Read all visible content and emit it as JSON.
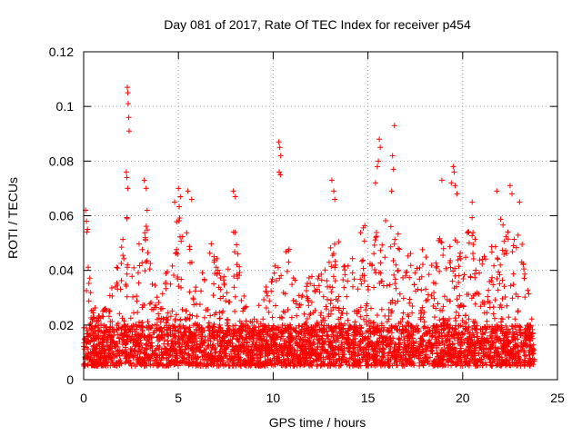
{
  "chart_data": {
    "type": "scatter",
    "title": "Day 081 of 2017, Rate Of TEC Index for receiver p454",
    "xlabel": "GPS time / hours",
    "ylabel": "ROTI / TECUs",
    "xlim": [
      0,
      25
    ],
    "ylim": [
      0,
      0.12
    ],
    "xticks": [
      0,
      5,
      10,
      15,
      20,
      25
    ],
    "yticks": [
      0,
      0.02,
      0.04,
      0.06,
      0.08,
      0.1,
      0.12
    ],
    "xtick_labels": [
      "0",
      "5",
      "10",
      "15",
      "20",
      "25"
    ],
    "ytick_labels": [
      "0",
      "0.02",
      "0.04",
      "0.06",
      "0.08",
      "0.1",
      "0.12"
    ],
    "grid": true,
    "marker": "+",
    "color": "#ff0000",
    "time_span_hours": [
      0,
      23.8
    ],
    "baseline_range": [
      0.005,
      0.02
    ],
    "envelope": [
      {
        "t": 0.0,
        "v": 0.02
      },
      {
        "t": 0.15,
        "v": 0.062
      },
      {
        "t": 0.4,
        "v": 0.03
      },
      {
        "t": 1.0,
        "v": 0.025
      },
      {
        "t": 1.5,
        "v": 0.035
      },
      {
        "t": 2.0,
        "v": 0.05
      },
      {
        "t": 2.3,
        "v": 0.06
      },
      {
        "t": 2.6,
        "v": 0.04
      },
      {
        "t": 3.0,
        "v": 0.055
      },
      {
        "t": 3.5,
        "v": 0.06
      },
      {
        "t": 4.0,
        "v": 0.03
      },
      {
        "t": 4.5,
        "v": 0.045
      },
      {
        "t": 4.9,
        "v": 0.065
      },
      {
        "t": 5.5,
        "v": 0.058
      },
      {
        "t": 6.0,
        "v": 0.03
      },
      {
        "t": 6.5,
        "v": 0.055
      },
      {
        "t": 7.0,
        "v": 0.05
      },
      {
        "t": 7.5,
        "v": 0.035
      },
      {
        "t": 7.8,
        "v": 0.065
      },
      {
        "t": 8.5,
        "v": 0.03
      },
      {
        "t": 9.0,
        "v": 0.025
      },
      {
        "t": 9.5,
        "v": 0.03
      },
      {
        "t": 10.0,
        "v": 0.045
      },
      {
        "t": 10.3,
        "v": 0.055
      },
      {
        "t": 10.8,
        "v": 0.05
      },
      {
        "t": 11.5,
        "v": 0.035
      },
      {
        "t": 12.0,
        "v": 0.04
      },
      {
        "t": 12.8,
        "v": 0.045
      },
      {
        "t": 13.3,
        "v": 0.055
      },
      {
        "t": 14.0,
        "v": 0.05
      },
      {
        "t": 14.5,
        "v": 0.055
      },
      {
        "t": 15.0,
        "v": 0.06
      },
      {
        "t": 15.5,
        "v": 0.055
      },
      {
        "t": 16.0,
        "v": 0.062
      },
      {
        "t": 16.5,
        "v": 0.055
      },
      {
        "t": 17.0,
        "v": 0.05
      },
      {
        "t": 17.5,
        "v": 0.045
      },
      {
        "t": 18.0,
        "v": 0.05
      },
      {
        "t": 18.5,
        "v": 0.055
      },
      {
        "t": 19.0,
        "v": 0.05
      },
      {
        "t": 19.5,
        "v": 0.055
      },
      {
        "t": 20.0,
        "v": 0.05
      },
      {
        "t": 20.5,
        "v": 0.06
      },
      {
        "t": 21.0,
        "v": 0.045
      },
      {
        "t": 21.5,
        "v": 0.05
      },
      {
        "t": 22.0,
        "v": 0.06
      },
      {
        "t": 22.5,
        "v": 0.055
      },
      {
        "t": 23.0,
        "v": 0.055
      },
      {
        "t": 23.5,
        "v": 0.035
      },
      {
        "t": 23.8,
        "v": 0.025
      }
    ],
    "notable_points": [
      {
        "x": 0.1,
        "y": 0.062
      },
      {
        "x": 0.15,
        "y": 0.058
      },
      {
        "x": 0.2,
        "y": 0.055
      },
      {
        "x": 2.3,
        "y": 0.107
      },
      {
        "x": 2.33,
        "y": 0.105
      },
      {
        "x": 2.35,
        "y": 0.101
      },
      {
        "x": 2.38,
        "y": 0.096
      },
      {
        "x": 2.4,
        "y": 0.091
      },
      {
        "x": 2.25,
        "y": 0.076
      },
      {
        "x": 2.28,
        "y": 0.074
      },
      {
        "x": 2.32,
        "y": 0.07
      },
      {
        "x": 3.2,
        "y": 0.073
      },
      {
        "x": 3.3,
        "y": 0.07
      },
      {
        "x": 3.35,
        "y": 0.062
      },
      {
        "x": 3.25,
        "y": 0.052
      },
      {
        "x": 4.8,
        "y": 0.065
      },
      {
        "x": 5.0,
        "y": 0.07
      },
      {
        "x": 5.1,
        "y": 0.067
      },
      {
        "x": 5.5,
        "y": 0.069
      },
      {
        "x": 5.7,
        "y": 0.066
      },
      {
        "x": 7.9,
        "y": 0.069
      },
      {
        "x": 8.0,
        "y": 0.067
      },
      {
        "x": 10.3,
        "y": 0.087
      },
      {
        "x": 10.35,
        "y": 0.085
      },
      {
        "x": 10.4,
        "y": 0.082
      },
      {
        "x": 10.32,
        "y": 0.076
      },
      {
        "x": 10.38,
        "y": 0.075
      },
      {
        "x": 13.1,
        "y": 0.073
      },
      {
        "x": 13.2,
        "y": 0.069
      },
      {
        "x": 13.25,
        "y": 0.066
      },
      {
        "x": 15.6,
        "y": 0.088
      },
      {
        "x": 15.65,
        "y": 0.085
      },
      {
        "x": 15.55,
        "y": 0.08
      },
      {
        "x": 15.5,
        "y": 0.078
      },
      {
        "x": 15.4,
        "y": 0.072
      },
      {
        "x": 16.4,
        "y": 0.093
      },
      {
        "x": 16.3,
        "y": 0.082
      },
      {
        "x": 16.35,
        "y": 0.077
      },
      {
        "x": 16.25,
        "y": 0.069
      },
      {
        "x": 18.9,
        "y": 0.073
      },
      {
        "x": 19.4,
        "y": 0.072
      },
      {
        "x": 19.5,
        "y": 0.078
      },
      {
        "x": 19.55,
        "y": 0.076
      },
      {
        "x": 19.6,
        "y": 0.071
      },
      {
        "x": 19.7,
        "y": 0.068
      },
      {
        "x": 20.5,
        "y": 0.065
      },
      {
        "x": 21.8,
        "y": 0.069
      },
      {
        "x": 22.5,
        "y": 0.071
      },
      {
        "x": 22.6,
        "y": 0.068
      },
      {
        "x": 23.0,
        "y": 0.065
      }
    ]
  }
}
